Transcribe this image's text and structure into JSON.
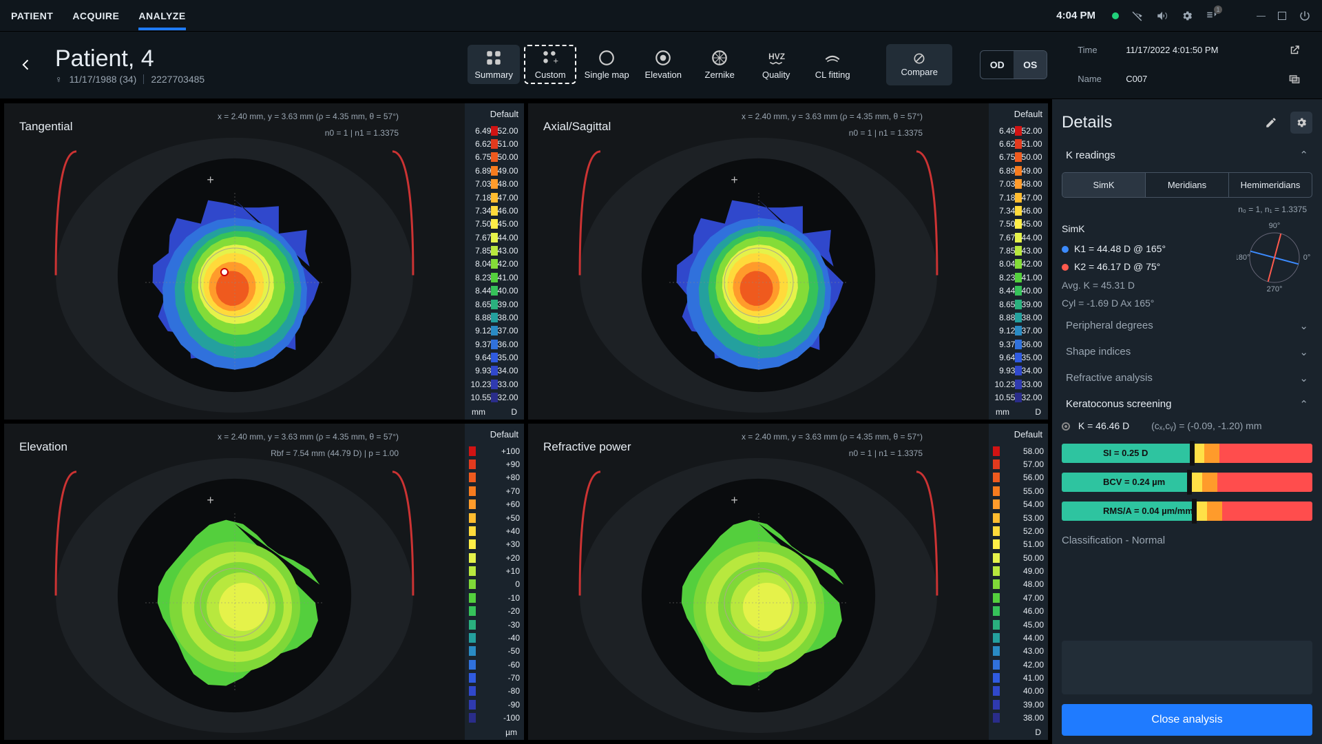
{
  "nav": {
    "patient": "PATIENT",
    "acquire": "ACQUIRE",
    "analyze": "ANALYZE",
    "active": "analyze"
  },
  "clock": "4:04 PM",
  "patient": {
    "name": "Patient, 4",
    "dob": "11/17/1988 (34)",
    "id": "2227703485"
  },
  "tabs": [
    {
      "key": "summary",
      "label": "Summary",
      "active": true
    },
    {
      "key": "custom",
      "label": "Custom",
      "sel": true
    },
    {
      "key": "single",
      "label": "Single map"
    },
    {
      "key": "elev",
      "label": "Elevation"
    },
    {
      "key": "zernike",
      "label": "Zernike"
    },
    {
      "key": "quality",
      "label": "Quality"
    },
    {
      "key": "cl",
      "label": "CL fitting"
    }
  ],
  "compare": "Compare",
  "eye": {
    "od": "OD",
    "os": "OS",
    "active": "os"
  },
  "info": {
    "time_l": "Time",
    "time_v": "11/17/2022 4:01:50 PM",
    "name_l": "Name",
    "name_v": "C007"
  },
  "maps": {
    "xy": "x = 2.40 mm, y = 3.63 mm (ρ = 4.35 mm, θ = 57°)",
    "n": "n0 = 1  |  n1 = 1.3375",
    "rbf": "Rbf = 7.54 mm (44.79 D)  |  p = 1.00",
    "default": "Default",
    "tan": {
      "title": "Tangential",
      "units_l": "mm",
      "units_r": "D"
    },
    "axi": {
      "title": "Axial/Sagittal",
      "units_l": "mm",
      "units_r": "D"
    },
    "ele": {
      "title": "Elevation",
      "units": "µm"
    },
    "ref": {
      "title": "Refractive power",
      "units": "D"
    },
    "scale_d": {
      "left": [
        "6.49",
        "6.62",
        "6.75",
        "6.89",
        "7.03",
        "7.18",
        "7.34",
        "7.50",
        "7.67",
        "7.85",
        "8.04",
        "8.23",
        "8.44",
        "8.65",
        "8.88",
        "9.12",
        "9.37",
        "9.64",
        "9.93",
        "10.23",
        "10.55"
      ],
      "right": [
        "52.00",
        "51.00",
        "50.00",
        "49.00",
        "48.00",
        "47.00",
        "46.00",
        "45.00",
        "44.00",
        "43.00",
        "42.00",
        "41.00",
        "40.00",
        "39.00",
        "38.00",
        "37.00",
        "36.00",
        "35.00",
        "34.00",
        "33.00",
        "32.00"
      ],
      "colors": [
        "#d11313",
        "#e23a1e",
        "#ef5a1e",
        "#f77b1e",
        "#ff9b2b",
        "#ffbc2f",
        "#ffda3b",
        "#ffee47",
        "#e5f24a",
        "#b8e83e",
        "#84dc38",
        "#54cf3d",
        "#36c25a",
        "#2ab07e",
        "#24a09e",
        "#2a8bc4",
        "#3071dc",
        "#305be0",
        "#3048cc",
        "#2f3ab0",
        "#2a2d8a"
      ]
    },
    "scale_um": {
      "vals": [
        "+100",
        "+90",
        "+80",
        "+70",
        "+60",
        "+50",
        "+40",
        "+30",
        "+20",
        "+10",
        "0",
        "-10",
        "-20",
        "-30",
        "-40",
        "-50",
        "-60",
        "-70",
        "-80",
        "-90",
        "-100"
      ],
      "colors": [
        "#d11313",
        "#e23a1e",
        "#ef5a1e",
        "#f77b1e",
        "#ff9b2b",
        "#ffbc2f",
        "#ffda3b",
        "#ffee47",
        "#e5f24a",
        "#b8e83e",
        "#7fd838",
        "#54cf3d",
        "#36c25a",
        "#2ab07e",
        "#24a09e",
        "#2a8bc4",
        "#3071dc",
        "#305be0",
        "#3048cc",
        "#2f3ab0",
        "#2a2d8a"
      ]
    },
    "scale_rp": {
      "vals": [
        "58.00",
        "57.00",
        "56.00",
        "55.00",
        "54.00",
        "53.00",
        "52.00",
        "51.00",
        "50.00",
        "49.00",
        "48.00",
        "47.00",
        "46.00",
        "45.00",
        "44.00",
        "43.00",
        "42.00",
        "41.00",
        "40.00",
        "39.00",
        "38.00"
      ],
      "colors": [
        "#d11313",
        "#e23a1e",
        "#ef5a1e",
        "#f77b1e",
        "#ff9b2b",
        "#ffbc2f",
        "#ffda3b",
        "#ffee47",
        "#e5f24a",
        "#b8e83e",
        "#7fd838",
        "#54cf3d",
        "#36c25a",
        "#2ab07e",
        "#24a09e",
        "#2a8bc4",
        "#3071dc",
        "#305be0",
        "#3048cc",
        "#2f3ab0",
        "#2a2d8a"
      ]
    }
  },
  "details": {
    "title": "Details",
    "kread": "K readings",
    "tabs": {
      "simk": "SimK",
      "meridians": "Meridians",
      "hemi": "Hemimeridians"
    },
    "idx": "n₀ = 1, n₁ = 1.3375",
    "simk_l": "SimK",
    "k1": "K1 = 44.48 D @ 165°",
    "k1c": "#3c8bff",
    "k2": "K2 = 46.17 D @ 75°",
    "k2c": "#ff5a4d",
    "avg": "Avg. K = 45.31 D",
    "cyl": "Cyl = -1.69 D Ax 165°",
    "axis": {
      "deg_top": "90°",
      "deg_r": "0°",
      "deg_l": "180°",
      "deg_b": "270°",
      "a1": 165,
      "a2": 75
    },
    "sects": {
      "pd": "Peripheral degrees",
      "si": "Shape indices",
      "ra": "Refractive analysis",
      "ks": "Keratoconus screening"
    },
    "kcs": {
      "k": "K = 46.46 D",
      "c": "(cₓ,cᵧ) = (-0.09, -1.20) mm"
    },
    "bars": [
      {
        "label": "SI = 0.25 D",
        "stops": [
          [
            "#2ec4a0",
            51
          ],
          [
            "#ffe047",
            6
          ],
          [
            "#ff9b2b",
            6
          ],
          [
            "#ff4d4d",
            37
          ]
        ],
        "mark": 51
      },
      {
        "label": "BCV = 0.24 µm",
        "stops": [
          [
            "#2ec4a0",
            50
          ],
          [
            "#ffe047",
            6
          ],
          [
            "#ff9b2b",
            6
          ],
          [
            "#ff4d4d",
            38
          ]
        ],
        "mark": 50
      },
      {
        "label": "RMS/A = 0.04 µm/mm²",
        "stops": [
          [
            "#2ec4a0",
            52
          ],
          [
            "#ffe047",
            6
          ],
          [
            "#ff9b2b",
            6
          ],
          [
            "#ff4d4d",
            36
          ]
        ],
        "mark": 52
      }
    ],
    "cls": "Classification - Normal",
    "close": "Close analysis"
  }
}
